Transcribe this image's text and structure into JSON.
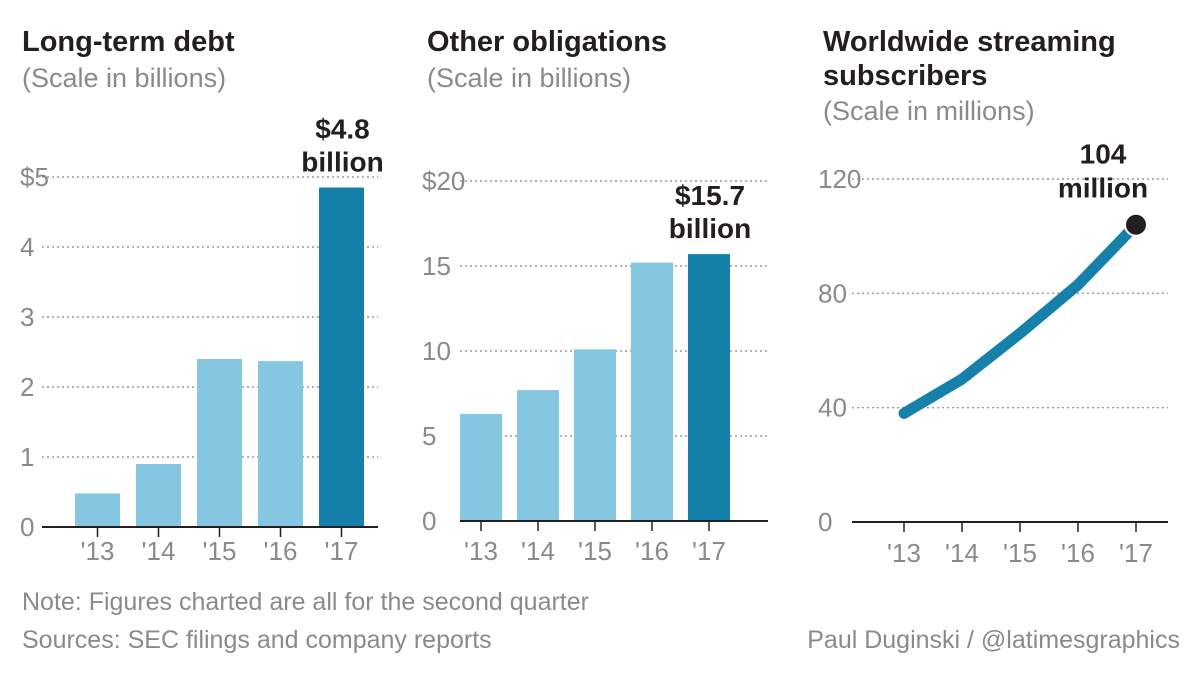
{
  "chart_data": [
    {
      "type": "bar",
      "title": "Long-term debt",
      "subtitle": "(Scale in billions)",
      "categories": [
        "'13",
        "'14",
        "'15",
        "'16",
        "'17"
      ],
      "values": [
        0.48,
        0.9,
        2.4,
        2.37,
        4.85
      ],
      "highlight_index": 4,
      "ylim": [
        0,
        5
      ],
      "ticks": [
        0,
        1,
        2,
        3,
        4,
        5
      ],
      "tick_labels": [
        "0",
        "1",
        "2",
        "3",
        "4",
        "$5"
      ],
      "callout": [
        "$4.8",
        "billion"
      ],
      "grid": true
    },
    {
      "type": "bar",
      "title": "Other obligations",
      "subtitle": "(Scale in billions)",
      "categories": [
        "'13",
        "'14",
        "'15",
        "'16",
        "'17"
      ],
      "values": [
        6.3,
        7.7,
        10.1,
        15.2,
        15.7
      ],
      "highlight_index": 4,
      "ylim": [
        0,
        20
      ],
      "ticks": [
        0,
        5,
        10,
        15,
        20
      ],
      "tick_labels": [
        "0",
        "5",
        "10",
        "15",
        "$20"
      ],
      "callout": [
        "$15.7",
        "billion"
      ],
      "grid": true
    },
    {
      "type": "line",
      "title": "Worldwide streaming subscribers",
      "title_lines": [
        "Worldwide streaming",
        "subscribers"
      ],
      "subtitle": "(Scale in millions)",
      "categories": [
        "'13",
        "'14",
        "'15",
        "'16",
        "'17"
      ],
      "values": [
        38,
        50,
        66,
        83,
        104
      ],
      "ylim": [
        0,
        120
      ],
      "ticks": [
        0,
        40,
        80,
        120
      ],
      "tick_labels": [
        "0",
        "40",
        "80",
        "120"
      ],
      "callout": [
        "104",
        "million"
      ],
      "grid": true
    }
  ],
  "colors": {
    "bar_light": "#85c7e0",
    "bar_highlight": "#1581aa",
    "line": "#1581aa",
    "endpoint": "#231f20",
    "grid": "#9a9a9a",
    "muted_text": "#8a8a8a",
    "dark_text": "#231f20"
  },
  "footer": {
    "note": "Note: Figures charted are all for the second quarter",
    "sources": "Sources: SEC filings and company reports",
    "credit": "Paul Duginski / @latimesgraphics"
  }
}
